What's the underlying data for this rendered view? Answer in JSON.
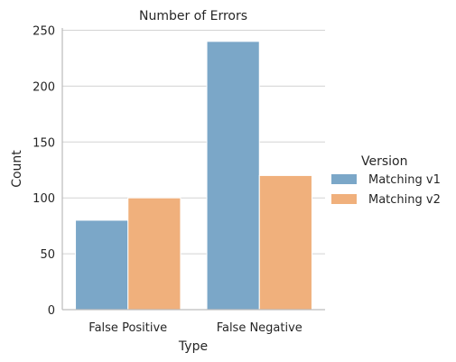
{
  "chart_data": {
    "type": "bar",
    "title": "Number of Errors",
    "xlabel": "Type",
    "ylabel": "Count",
    "categories": [
      "False Positive",
      "False Negative"
    ],
    "series": [
      {
        "name": "Matching v1",
        "values": [
          80,
          240
        ],
        "color": "#7ba7c8"
      },
      {
        "name": "Matching v2",
        "values": [
          100,
          120
        ],
        "color": "#f0b07c"
      }
    ],
    "ylim": [
      0,
      252
    ],
    "yticks": [
      0,
      50,
      100,
      150,
      200,
      250
    ],
    "grid": "horizontal",
    "legend": {
      "title": "Version",
      "placement": "right"
    },
    "colors": {
      "grid": "#d3d3d3",
      "axis": "#bdbdbd",
      "text": "#262626"
    }
  }
}
